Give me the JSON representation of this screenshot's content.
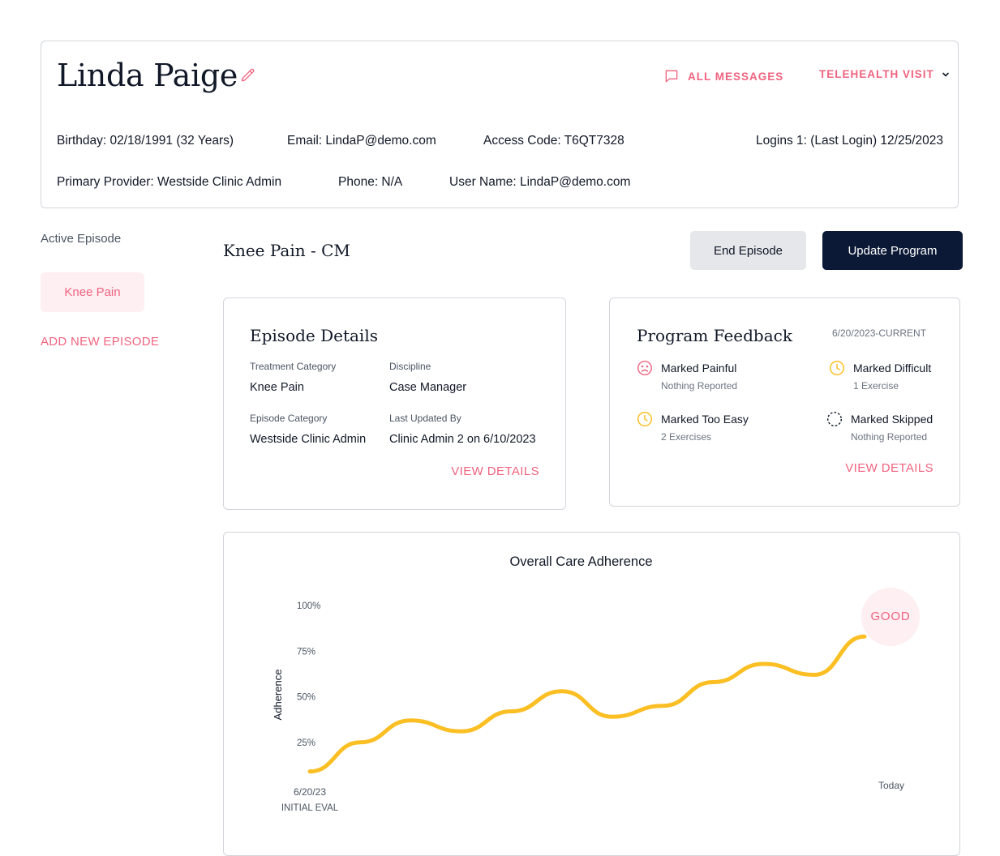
{
  "patient": {
    "name": "Linda Paige",
    "all_messages": "ALL MESSAGES",
    "telehealth": "TELEHEALTH VISIT",
    "birthday": "Birthday: 02/18/1991 (32 Years)",
    "email": "Email: LindaP@demo.com",
    "access_code": "Access Code: T6QT7328",
    "logins": "Logins 1: (Last Login) 12/25/2023",
    "primary_provider": "Primary Provider: Westside Clinic Admin",
    "phone": "Phone: N/A",
    "user_name": "User Name: LindaP@demo.com"
  },
  "sidebar": {
    "active_episode_label": "Active Episode",
    "episode_pill": "Knee Pain",
    "add_episode": "ADD NEW EPISODE"
  },
  "episode": {
    "title": "Knee Pain - CM",
    "end_button": "End Episode",
    "update_button": "Update Program"
  },
  "details": {
    "title": "Episode Details",
    "treatment_category_label": "Treatment Category",
    "treatment_category": "Knee Pain",
    "discipline_label": "Discipline",
    "discipline": "Case Manager",
    "episode_category_label": "Episode Category",
    "episode_category": "Westside Clinic Admin",
    "last_updated_label": "Last Updated By",
    "last_updated": "Clinic Admin 2 on 6/10/2023",
    "view_details": "VIEW DETAILS"
  },
  "feedback": {
    "title": "Program Feedback",
    "date_range": "6/20/2023-CURRENT",
    "painful_label": "Marked Painful",
    "painful_sub": "Nothing Reported",
    "difficult_label": "Marked Difficult",
    "difficult_sub": "1 Exercise",
    "easy_label": "Marked Too Easy",
    "easy_sub": "2 Exercises",
    "skipped_label": "Marked Skipped",
    "skipped_sub": "Nothing Reported",
    "view_details": "VIEW DETAILS"
  },
  "colors": {
    "accent": "#f0637f",
    "navy": "#0b1936",
    "line": "#fbbf24"
  },
  "chart_data": {
    "type": "line",
    "title": "Overall Care Adherence",
    "ylabel": "Adherence",
    "xlabel": "",
    "ylim": [
      0,
      100
    ],
    "yticks": [
      "25%",
      "50%",
      "75%",
      "100%"
    ],
    "x_start_label": "6/20/23",
    "x_start_sublabel": "INITIAL EVAL",
    "x_end_label": "Today",
    "status_badge": "GOOD",
    "series": [
      {
        "values": [
          9,
          25,
          37,
          31,
          42,
          53,
          39,
          45,
          58,
          68,
          62,
          83
        ]
      }
    ]
  }
}
